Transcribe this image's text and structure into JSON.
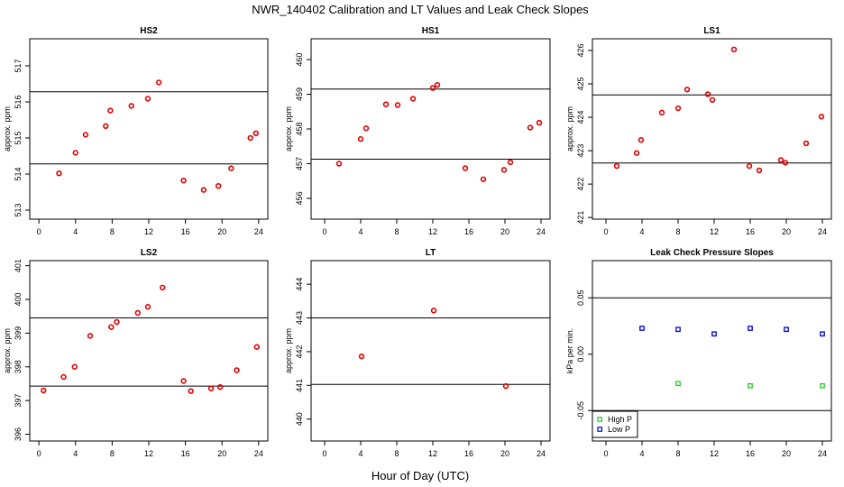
{
  "title": "NWR_140402  Calibration and LT Values and Leak Check Slopes",
  "xlabel": "Hour of Day (UTC)",
  "chart_data": [
    {
      "type": "scatter",
      "title": "HS2",
      "ylabel": "approx. ppm",
      "xlim": [
        -1,
        25
      ],
      "ylim": [
        512.75,
        517.75
      ],
      "xticks": [
        0,
        4,
        8,
        12,
        16,
        20,
        24
      ],
      "yticks": [
        513,
        514,
        515,
        516,
        517
      ],
      "hlines": [
        514.28,
        516.28
      ],
      "series": [
        {
          "color": "#e00000",
          "marker": "circle",
          "x": [
            2.2,
            4.0,
            5.1,
            7.3,
            7.8,
            10.1,
            11.9,
            13.1,
            15.8,
            18.0,
            19.6,
            21.0,
            23.1,
            23.7
          ],
          "y": [
            514.02,
            514.59,
            515.09,
            515.33,
            515.76,
            515.89,
            516.09,
            516.54,
            513.82,
            513.56,
            513.67,
            514.16,
            515.0,
            515.13
          ]
        }
      ]
    },
    {
      "type": "scatter",
      "title": "HS1",
      "ylabel": "approx. ppm",
      "xlim": [
        -1.5,
        25
      ],
      "ylim": [
        455.4,
        460.6
      ],
      "xticks": [
        0,
        4,
        8,
        12,
        16,
        20,
        24
      ],
      "yticks": [
        456,
        457,
        458,
        459,
        460
      ],
      "hlines": [
        457.13,
        459.15
      ],
      "series": [
        {
          "color": "#e00000",
          "marker": "circle",
          "x": [
            1.6,
            4.0,
            4.6,
            6.8,
            8.1,
            9.8,
            12.0,
            12.5,
            15.6,
            17.6,
            19.9,
            20.6,
            22.8,
            23.8
          ],
          "y": [
            457.0,
            457.71,
            458.02,
            458.71,
            458.69,
            458.87,
            459.18,
            459.27,
            456.87,
            456.55,
            456.82,
            457.04,
            458.04,
            458.18
          ]
        }
      ]
    },
    {
      "type": "scatter",
      "title": "LS1",
      "ylabel": "approx. ppm",
      "xlim": [
        -1.5,
        25
      ],
      "ylim": [
        420.95,
        426.35
      ],
      "xticks": [
        0,
        4,
        8,
        12,
        16,
        20,
        24
      ],
      "yticks": [
        421,
        422,
        423,
        424,
        425,
        426
      ],
      "hlines": [
        422.63,
        424.67
      ],
      "series": [
        {
          "color": "#e00000",
          "marker": "circle",
          "x": [
            1.2,
            3.4,
            3.9,
            6.2,
            8.0,
            9.0,
            11.3,
            11.8,
            14.2,
            15.9,
            17.0,
            19.4,
            19.9,
            22.2,
            23.9
          ],
          "y": [
            422.54,
            422.93,
            423.32,
            424.14,
            424.27,
            424.83,
            424.69,
            424.52,
            426.03,
            422.54,
            422.41,
            422.72,
            422.64,
            423.22,
            424.02
          ]
        }
      ]
    },
    {
      "type": "scatter",
      "title": "LS2",
      "ylabel": "approx. ppm",
      "xlim": [
        -1,
        25
      ],
      "ylim": [
        395.8,
        401.15
      ],
      "xticks": [
        0,
        4,
        8,
        12,
        16,
        20,
        24
      ],
      "yticks": [
        396,
        397,
        398,
        399,
        400,
        401
      ],
      "hlines": [
        397.43,
        399.45
      ],
      "series": [
        {
          "color": "#e00000",
          "marker": "circle",
          "x": [
            0.5,
            2.7,
            3.9,
            5.6,
            7.9,
            8.5,
            10.8,
            11.9,
            13.5,
            15.8,
            16.6,
            18.8,
            19.8,
            21.6,
            23.8
          ],
          "y": [
            397.3,
            397.7,
            398.0,
            398.92,
            399.18,
            399.33,
            399.6,
            399.78,
            400.35,
            397.58,
            397.28,
            397.36,
            397.4,
            397.9,
            398.59
          ]
        }
      ]
    },
    {
      "type": "scatter",
      "title": "LT",
      "ylabel": "approx. ppm",
      "xlim": [
        -1.5,
        25
      ],
      "ylim": [
        439.35,
        444.7
      ],
      "xticks": [
        0,
        4,
        8,
        12,
        16,
        20,
        24
      ],
      "yticks": [
        440,
        441,
        442,
        443,
        444
      ],
      "hlines": [
        441.03,
        443.0
      ],
      "series": [
        {
          "color": "#e00000",
          "marker": "circle",
          "x": [
            4.1,
            12.1,
            20.1
          ],
          "y": [
            441.86,
            443.22,
            440.98
          ]
        }
      ]
    },
    {
      "type": "scatter",
      "title": "Leak Check Pressure Slopes",
      "ylabel": "kPa per min.",
      "xlim": [
        -1.5,
        25
      ],
      "ylim": [
        -0.077,
        0.083
      ],
      "xticks": [
        0,
        4,
        8,
        12,
        16,
        20,
        24
      ],
      "yticks": [
        -0.05,
        0.0,
        0.05
      ],
      "yticklabels": [
        "-0.05",
        "0.00",
        "0.05"
      ],
      "hlines": [
        -0.05,
        0.05
      ],
      "legend": "bottom-left",
      "series": [
        {
          "name": "High P",
          "color": "#22cc22",
          "marker": "square",
          "x": [
            8.0,
            16.0,
            24.0
          ],
          "y": [
            -0.026,
            -0.028,
            -0.028
          ]
        },
        {
          "name": "Low P",
          "color": "#0000dd",
          "marker": "square",
          "x": [
            4.0,
            8.0,
            12.0,
            16.0,
            20.0,
            24.0
          ],
          "y": [
            0.023,
            0.022,
            0.018,
            0.023,
            0.022,
            0.018
          ]
        }
      ]
    }
  ]
}
